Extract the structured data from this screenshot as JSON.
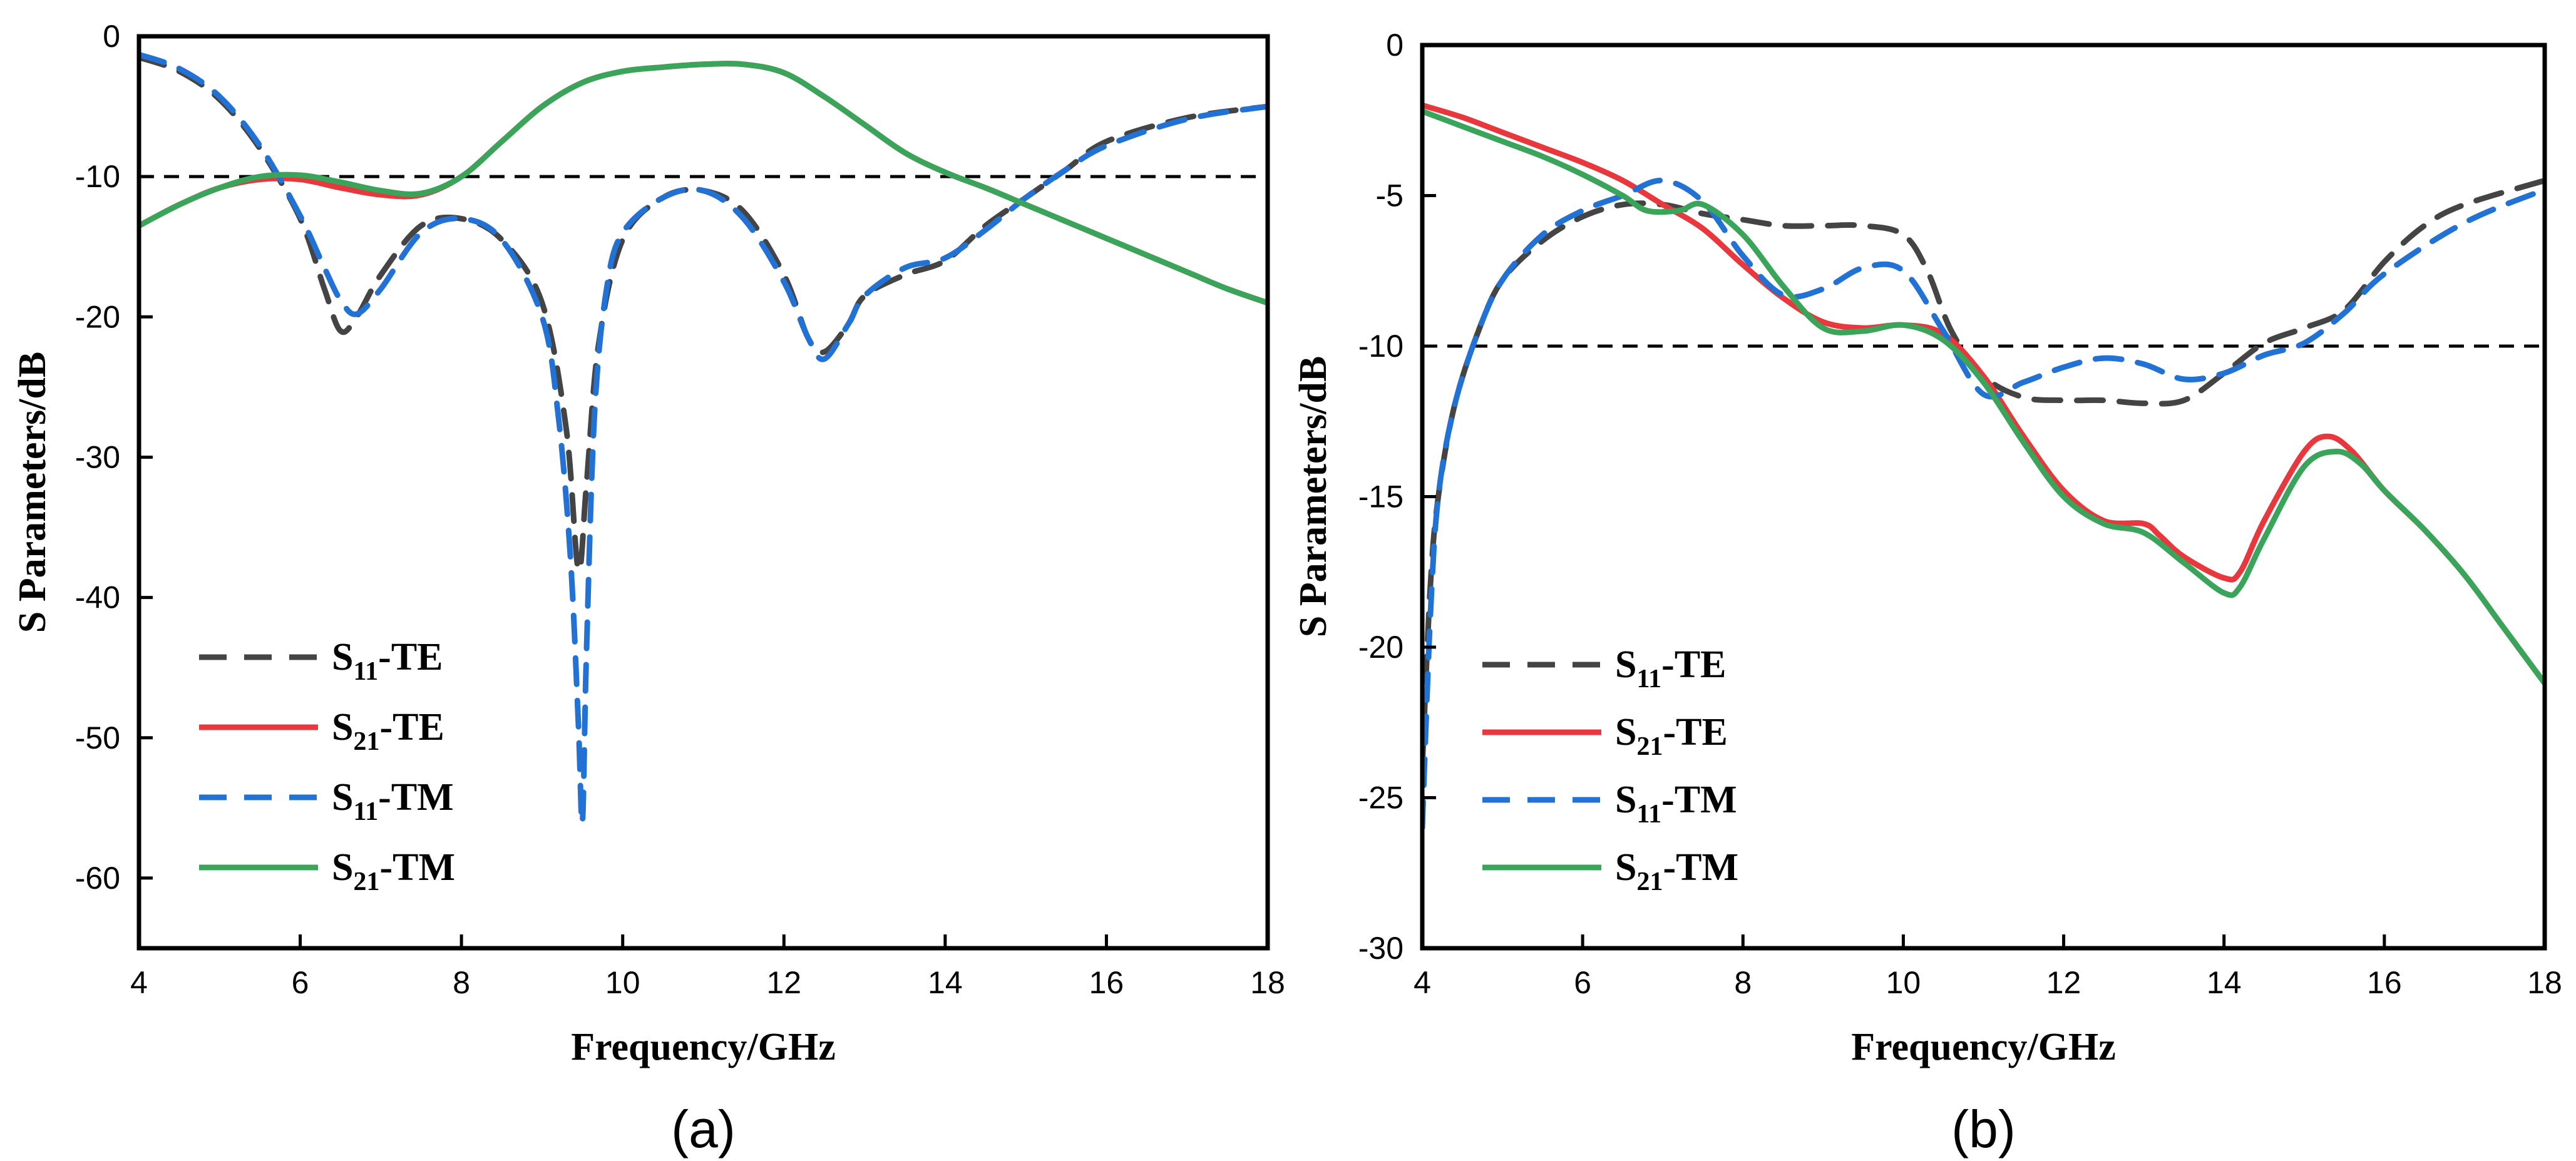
{
  "chart_data": [
    {
      "type": "line",
      "panel_label": "(a)",
      "xlabel": "Frequency/GHz",
      "ylabel": "S Parameters/dB",
      "xlim": [
        4,
        18
      ],
      "ylim": [
        -65,
        0
      ],
      "xticks": [
        4,
        6,
        8,
        10,
        12,
        14,
        16,
        18
      ],
      "yticks": [
        0,
        -10,
        -20,
        -30,
        -40,
        -50,
        -60
      ],
      "reference_line": {
        "y": -10,
        "style": "dashed",
        "color": "#000000"
      },
      "legend_position": "lower-left",
      "series": [
        {
          "name": "S11-TE",
          "base": "S",
          "sub": "11",
          "suffix": "-TE",
          "color": "#444444",
          "dash": "dashed",
          "x": [
            4.0,
            4.5,
            5.0,
            5.5,
            6.0,
            6.3,
            6.5,
            6.7,
            7.0,
            7.5,
            8.0,
            8.5,
            9.0,
            9.3,
            9.45,
            9.55,
            9.7,
            10.0,
            10.5,
            11.0,
            11.5,
            12.0,
            12.3,
            12.5,
            12.8,
            13.0,
            13.5,
            14.0,
            14.5,
            15.0,
            15.5,
            16.0,
            17.0,
            18.0
          ],
          "y": [
            -1.5,
            -2.5,
            -4.5,
            -8.0,
            -13.0,
            -18.0,
            -21.0,
            -20.0,
            -17.0,
            -13.5,
            -13.0,
            -14.5,
            -19.0,
            -28.0,
            -38.0,
            -32.0,
            -22.0,
            -14.5,
            -11.5,
            -11.0,
            -12.5,
            -17.0,
            -21.5,
            -22.5,
            -20.5,
            -18.5,
            -17.0,
            -16.0,
            -13.5,
            -11.5,
            -9.5,
            -7.5,
            -5.8,
            -5.0
          ]
        },
        {
          "name": "S21-TE",
          "base": "S",
          "sub": "21",
          "suffix": "-TE",
          "color": "#e8383d",
          "dash": "solid",
          "x": [
            4.0,
            4.5,
            5.0,
            5.5,
            6.0,
            6.5,
            7.0,
            7.5,
            8.0,
            8.5,
            9.0,
            9.5,
            10.0,
            10.5,
            11.0,
            11.5,
            12.0,
            12.5,
            13.0,
            13.5,
            14.0,
            14.5,
            15.0,
            15.5,
            16.0,
            16.5,
            17.0,
            17.5,
            18.0
          ],
          "y": [
            -13.5,
            -12.0,
            -10.8,
            -10.2,
            -10.2,
            -10.8,
            -11.3,
            -11.3,
            -10.0,
            -7.5,
            -5.0,
            -3.3,
            -2.5,
            -2.2,
            -2.0,
            -2.0,
            -2.6,
            -4.3,
            -6.3,
            -8.3,
            -9.7,
            -10.8,
            -12.0,
            -13.2,
            -14.4,
            -15.6,
            -16.8,
            -18.0,
            -19.0
          ]
        },
        {
          "name": "S11-TM",
          "base": "S",
          "sub": "11",
          "suffix": "-TM",
          "color": "#2272d6",
          "dash": "dashed",
          "x": [
            4.0,
            4.5,
            5.0,
            5.5,
            6.0,
            6.3,
            6.5,
            6.7,
            7.0,
            7.5,
            8.0,
            8.5,
            9.0,
            9.2,
            9.35,
            9.45,
            9.5,
            9.55,
            9.65,
            9.8,
            10.0,
            10.5,
            11.0,
            11.5,
            12.0,
            12.3,
            12.5,
            12.8,
            13.0,
            13.5,
            14.0,
            14.5,
            15.0,
            15.5,
            16.0,
            17.0,
            18.0
          ],
          "y": [
            -1.3,
            -2.3,
            -4.3,
            -7.8,
            -12.8,
            -16.5,
            -18.8,
            -19.8,
            -18.0,
            -14.0,
            -13.0,
            -14.5,
            -20.0,
            -27.0,
            -37.0,
            -49.0,
            -56.0,
            -44.0,
            -27.0,
            -18.0,
            -14.0,
            -11.5,
            -11.0,
            -13.0,
            -17.5,
            -21.5,
            -23.0,
            -20.5,
            -18.5,
            -16.5,
            -15.8,
            -13.8,
            -11.5,
            -9.5,
            -7.8,
            -5.9,
            -5.0
          ]
        },
        {
          "name": "S21-TM",
          "base": "S",
          "sub": "21",
          "suffix": "-TM",
          "color": "#3aa55a",
          "dash": "solid",
          "x": [
            4.0,
            4.5,
            5.0,
            5.5,
            6.0,
            6.5,
            7.0,
            7.5,
            8.0,
            8.5,
            9.0,
            9.5,
            10.0,
            10.5,
            11.0,
            11.5,
            12.0,
            12.5,
            13.0,
            13.5,
            14.0,
            14.5,
            15.0,
            15.5,
            16.0,
            16.5,
            17.0,
            17.5,
            18.0
          ],
          "y": [
            -13.5,
            -12.0,
            -10.8,
            -10.0,
            -9.9,
            -10.4,
            -11.0,
            -11.2,
            -10.0,
            -7.5,
            -5.0,
            -3.3,
            -2.5,
            -2.2,
            -2.0,
            -2.0,
            -2.6,
            -4.3,
            -6.3,
            -8.3,
            -9.7,
            -10.8,
            -12.0,
            -13.2,
            -14.4,
            -15.6,
            -16.8,
            -18.0,
            -19.0
          ]
        }
      ]
    },
    {
      "type": "line",
      "panel_label": "(b)",
      "xlabel": "Frequency/GHz",
      "ylabel": "S Parameters/dB",
      "xlim": [
        4,
        18
      ],
      "ylim": [
        -30,
        0
      ],
      "xticks": [
        4,
        6,
        8,
        10,
        12,
        14,
        16,
        18
      ],
      "yticks": [
        0,
        -5,
        -10,
        -15,
        -20,
        -25,
        -30
      ],
      "reference_line": {
        "y": -10,
        "style": "dashed",
        "color": "#000000"
      },
      "legend_position": "lower-left",
      "series": [
        {
          "name": "S11-TE",
          "base": "S",
          "sub": "11",
          "suffix": "-TE",
          "color": "#444444",
          "dash": "dashed",
          "x": [
            4.0,
            4.1,
            4.2,
            4.4,
            4.7,
            5.0,
            5.5,
            6.0,
            6.5,
            7.0,
            7.5,
            8.0,
            8.5,
            9.0,
            9.5,
            10.0,
            10.3,
            10.6,
            11.0,
            11.5,
            12.0,
            12.5,
            13.0,
            13.5,
            14.0,
            14.5,
            15.0,
            15.5,
            16.0,
            16.5,
            17.0,
            18.0
          ],
          "y": [
            -24.0,
            -18.0,
            -15.0,
            -12.0,
            -9.5,
            -7.8,
            -6.5,
            -5.7,
            -5.3,
            -5.3,
            -5.6,
            -5.8,
            -6.0,
            -6.0,
            -6.0,
            -6.3,
            -7.5,
            -9.5,
            -11.0,
            -11.7,
            -11.8,
            -11.8,
            -11.9,
            -11.8,
            -10.9,
            -9.9,
            -9.4,
            -8.8,
            -7.2,
            -6.0,
            -5.3,
            -4.5
          ]
        },
        {
          "name": "S21-TE",
          "base": "S",
          "sub": "21",
          "suffix": "-TE",
          "color": "#e8383d",
          "dash": "solid",
          "x": [
            4.0,
            4.5,
            5.0,
            5.5,
            6.0,
            6.5,
            7.0,
            7.5,
            8.0,
            8.5,
            9.0,
            9.5,
            10.0,
            10.5,
            11.0,
            11.5,
            12.0,
            12.5,
            13.0,
            13.2,
            13.5,
            14.0,
            14.2,
            14.5,
            15.0,
            15.3,
            15.6,
            16.0,
            16.5,
            17.0,
            17.5,
            18.0
          ],
          "y": [
            -2.0,
            -2.4,
            -2.9,
            -3.4,
            -3.9,
            -4.5,
            -5.3,
            -6.1,
            -7.3,
            -8.4,
            -9.2,
            -9.4,
            -9.3,
            -9.6,
            -11.0,
            -13.0,
            -14.8,
            -15.8,
            -15.9,
            -16.3,
            -17.0,
            -17.7,
            -17.5,
            -15.8,
            -13.5,
            -13.0,
            -13.5,
            -14.8,
            -16.1,
            -17.6,
            -19.4,
            -21.2
          ]
        },
        {
          "name": "S11-TM",
          "base": "S",
          "sub": "11",
          "suffix": "-TM",
          "color": "#2272d6",
          "dash": "dashed",
          "x": [
            4.0,
            4.1,
            4.2,
            4.4,
            4.7,
            5.0,
            5.5,
            6.0,
            6.5,
            7.0,
            7.5,
            8.0,
            8.5,
            9.0,
            9.5,
            10.0,
            10.5,
            11.0,
            11.5,
            12.0,
            12.5,
            13.0,
            13.5,
            14.0,
            14.5,
            15.0,
            15.5,
            16.0,
            17.0,
            18.0
          ],
          "y": [
            -26.0,
            -19.0,
            -15.0,
            -12.0,
            -9.5,
            -7.8,
            -6.3,
            -5.5,
            -5.0,
            -4.5,
            -5.2,
            -7.0,
            -8.3,
            -8.1,
            -7.4,
            -7.5,
            -9.5,
            -11.6,
            -11.2,
            -10.7,
            -10.4,
            -10.6,
            -11.1,
            -10.9,
            -10.3,
            -9.9,
            -8.9,
            -7.6,
            -5.9,
            -4.8
          ]
        },
        {
          "name": "S21-TM",
          "base": "S",
          "sub": "21",
          "suffix": "-TM",
          "color": "#3aa55a",
          "dash": "solid",
          "x": [
            4.0,
            4.5,
            5.0,
            5.5,
            6.0,
            6.5,
            6.8,
            7.2,
            7.5,
            8.0,
            8.5,
            9.0,
            9.5,
            10.0,
            10.5,
            11.0,
            11.5,
            12.0,
            12.5,
            13.0,
            13.5,
            14.0,
            14.2,
            14.5,
            15.0,
            15.4,
            15.7,
            16.0,
            16.5,
            17.0,
            17.5,
            18.0
          ],
          "y": [
            -2.2,
            -2.7,
            -3.2,
            -3.7,
            -4.3,
            -5.0,
            -5.5,
            -5.5,
            -5.3,
            -6.3,
            -8.0,
            -9.4,
            -9.5,
            -9.3,
            -9.8,
            -11.2,
            -13.2,
            -15.0,
            -15.9,
            -16.2,
            -17.2,
            -18.2,
            -18.0,
            -16.4,
            -14.0,
            -13.5,
            -13.9,
            -14.8,
            -16.1,
            -17.6,
            -19.4,
            -21.2
          ]
        }
      ]
    }
  ]
}
